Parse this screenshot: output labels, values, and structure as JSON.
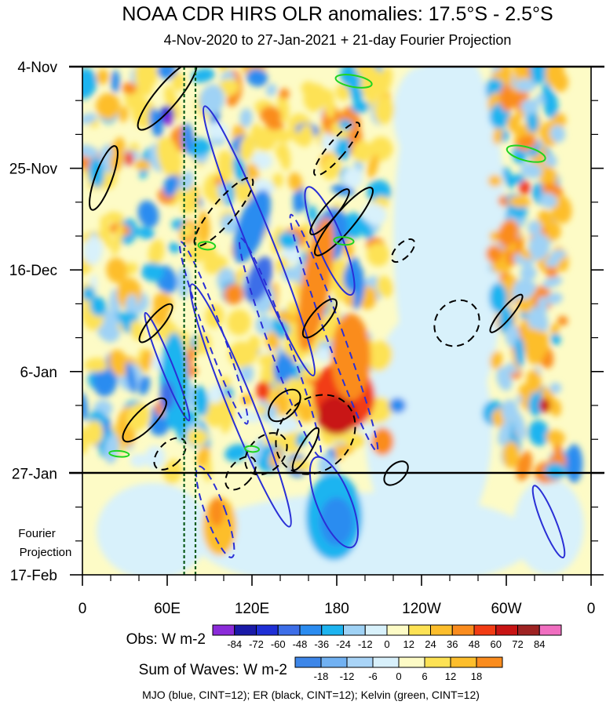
{
  "chart_data": {
    "type": "heatmap",
    "title": "NOAA CDR HIRS OLR anomalies: 17.5°S - 2.5°S",
    "subtitle": "4-Nov-2020 to 27-Jan-2021 + 21-day Fourier Projection",
    "x_axis": {
      "range_deg_east": [
        0,
        360
      ],
      "tick_positions_deg": [
        0,
        60,
        120,
        180,
        240,
        300,
        360
      ],
      "tick_labels": [
        "0",
        "60E",
        "120E",
        "180",
        "120W",
        "60W",
        "0"
      ]
    },
    "y_axis": {
      "range": [
        "4-Nov-2020",
        "17-Feb-2021"
      ],
      "tick_day_offsets": [
        0,
        21,
        42,
        63,
        84,
        105
      ],
      "tick_labels": [
        "4-Nov",
        "25-Nov",
        "16-Dec",
        "6-Jan",
        "27-Jan",
        "17-Feb"
      ],
      "forecast_start_day": 84,
      "forecast_label_line1": "Fourier",
      "forecast_label_line2": "Projection"
    },
    "obs_colorbar": {
      "label": "Obs: W m-2",
      "levels": [
        -84,
        -72,
        -60,
        -48,
        -36,
        -24,
        -12,
        0,
        12,
        24,
        36,
        48,
        60,
        72,
        84
      ],
      "level_labels": [
        "-84",
        "-72",
        "-60",
        "-48",
        "-36",
        "-24",
        "-12",
        "0",
        "12",
        "24",
        "36",
        "48",
        "60",
        "72",
        "84"
      ],
      "colors": [
        "#8b2bd9",
        "#1a1aa8",
        "#1f2fd6",
        "#3d6ee8",
        "#2b8cf0",
        "#1db4f0",
        "#9fd2f5",
        "#d8f1fb",
        "#fdfbc6",
        "#fde254",
        "#fdbe2c",
        "#fa8c1e",
        "#f23c14",
        "#c81414",
        "#9e2323",
        "#f06ec0"
      ]
    },
    "waves_colorbar": {
      "label": "Sum of Waves: W m-2",
      "levels": [
        -18,
        -12,
        -6,
        0,
        6,
        12,
        18
      ],
      "level_labels": [
        "-18",
        "-12",
        "-6",
        "0",
        "6",
        "12",
        "18"
      ],
      "colors": [
        "#3d86e8",
        "#71b1f2",
        "#a9d4f7",
        "#d8f0fb",
        "#fdfbc6",
        "#fde254",
        "#fdbe2c",
        "#fa8c1e"
      ]
    },
    "dashed_reference_lines_deg_east": [
      72,
      80
    ],
    "series": [
      {
        "name": "MJO",
        "color": "blue",
        "cint": 12
      },
      {
        "name": "ER",
        "color": "black",
        "cint": 12
      },
      {
        "name": "Kelvin",
        "color": "green",
        "cint": 12
      }
    ],
    "footnote": "MJO (blue, CINT=12); ER (black, CINT=12); Kelvin (green, CINT=12)"
  }
}
